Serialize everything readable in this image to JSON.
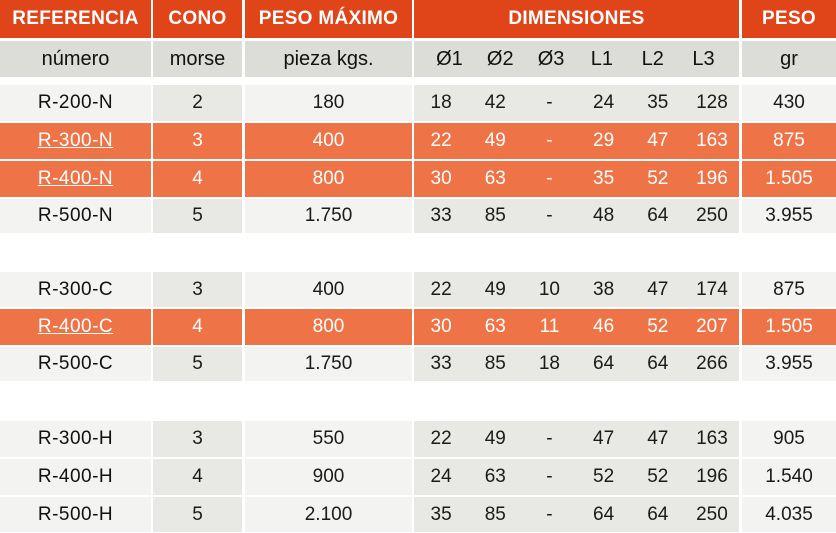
{
  "colors": {
    "header_bg": "#e04519",
    "highlight_bg": "#ee7447",
    "subheader_bg": "#dcdcd8",
    "row_bg": "#f3f3f1",
    "row_alt_bg": "#e8e8e5"
  },
  "header": {
    "referencia": "REFERENCIA",
    "cono": "CONO",
    "peso_maximo": "PESO MÁXIMO",
    "dimensiones": "DIMENSIONES",
    "peso": "PESO"
  },
  "subheader": {
    "referencia": "número",
    "cono": "morse",
    "peso_maximo": "pieza kgs.",
    "dims": [
      "Ø1",
      "Ø2",
      "Ø3",
      "L1",
      "L2",
      "L3"
    ],
    "peso": "gr"
  },
  "groups": [
    {
      "rows": [
        {
          "ref": "R-200-N",
          "cono": "2",
          "peso_max": "180",
          "d1": "18",
          "d2": "42",
          "d3": "-",
          "l1": "24",
          "l2": "35",
          "l3": "128",
          "peso": "430",
          "highlighted": false
        },
        {
          "ref": "R-300-N",
          "cono": "3",
          "peso_max": "400",
          "d1": "22",
          "d2": "49",
          "d3": "-",
          "l1": "29",
          "l2": "47",
          "l3": "163",
          "peso": "875",
          "highlighted": true
        },
        {
          "ref": "R-400-N",
          "cono": "4",
          "peso_max": "800",
          "d1": "30",
          "d2": "63",
          "d3": "-",
          "l1": "35",
          "l2": "52",
          "l3": "196",
          "peso": "1.505",
          "highlighted": true
        },
        {
          "ref": "R-500-N",
          "cono": "5",
          "peso_max": "1.750",
          "d1": "33",
          "d2": "85",
          "d3": "-",
          "l1": "48",
          "l2": "64",
          "l3": "250",
          "peso": "3.955",
          "highlighted": false
        }
      ]
    },
    {
      "rows": [
        {
          "ref": "R-300-C",
          "cono": "3",
          "peso_max": "400",
          "d1": "22",
          "d2": "49",
          "d3": "10",
          "l1": "38",
          "l2": "47",
          "l3": "174",
          "peso": "875",
          "highlighted": false
        },
        {
          "ref": "R-400-C",
          "cono": "4",
          "peso_max": "800",
          "d1": "30",
          "d2": "63",
          "d3": "11",
          "l1": "46",
          "l2": "52",
          "l3": "207",
          "peso": "1.505",
          "highlighted": true
        },
        {
          "ref": "R-500-C",
          "cono": "5",
          "peso_max": "1.750",
          "d1": "33",
          "d2": "85",
          "d3": "18",
          "l1": "64",
          "l2": "64",
          "l3": "266",
          "peso": "3.955",
          "highlighted": false
        }
      ]
    },
    {
      "rows": [
        {
          "ref": "R-300-H",
          "cono": "3",
          "peso_max": "550",
          "d1": "22",
          "d2": "49",
          "d3": "-",
          "l1": "47",
          "l2": "47",
          "l3": "163",
          "peso": "905",
          "highlighted": false
        },
        {
          "ref": "R-400-H",
          "cono": "4",
          "peso_max": "900",
          "d1": "24",
          "d2": "63",
          "d3": "-",
          "l1": "52",
          "l2": "52",
          "l3": "196",
          "peso": "1.540",
          "highlighted": false
        },
        {
          "ref": "R-500-H",
          "cono": "5",
          "peso_max": "2.100",
          "d1": "35",
          "d2": "85",
          "d3": "-",
          "l1": "64",
          "l2": "64",
          "l3": "250",
          "peso": "4.035",
          "highlighted": false
        }
      ]
    }
  ]
}
